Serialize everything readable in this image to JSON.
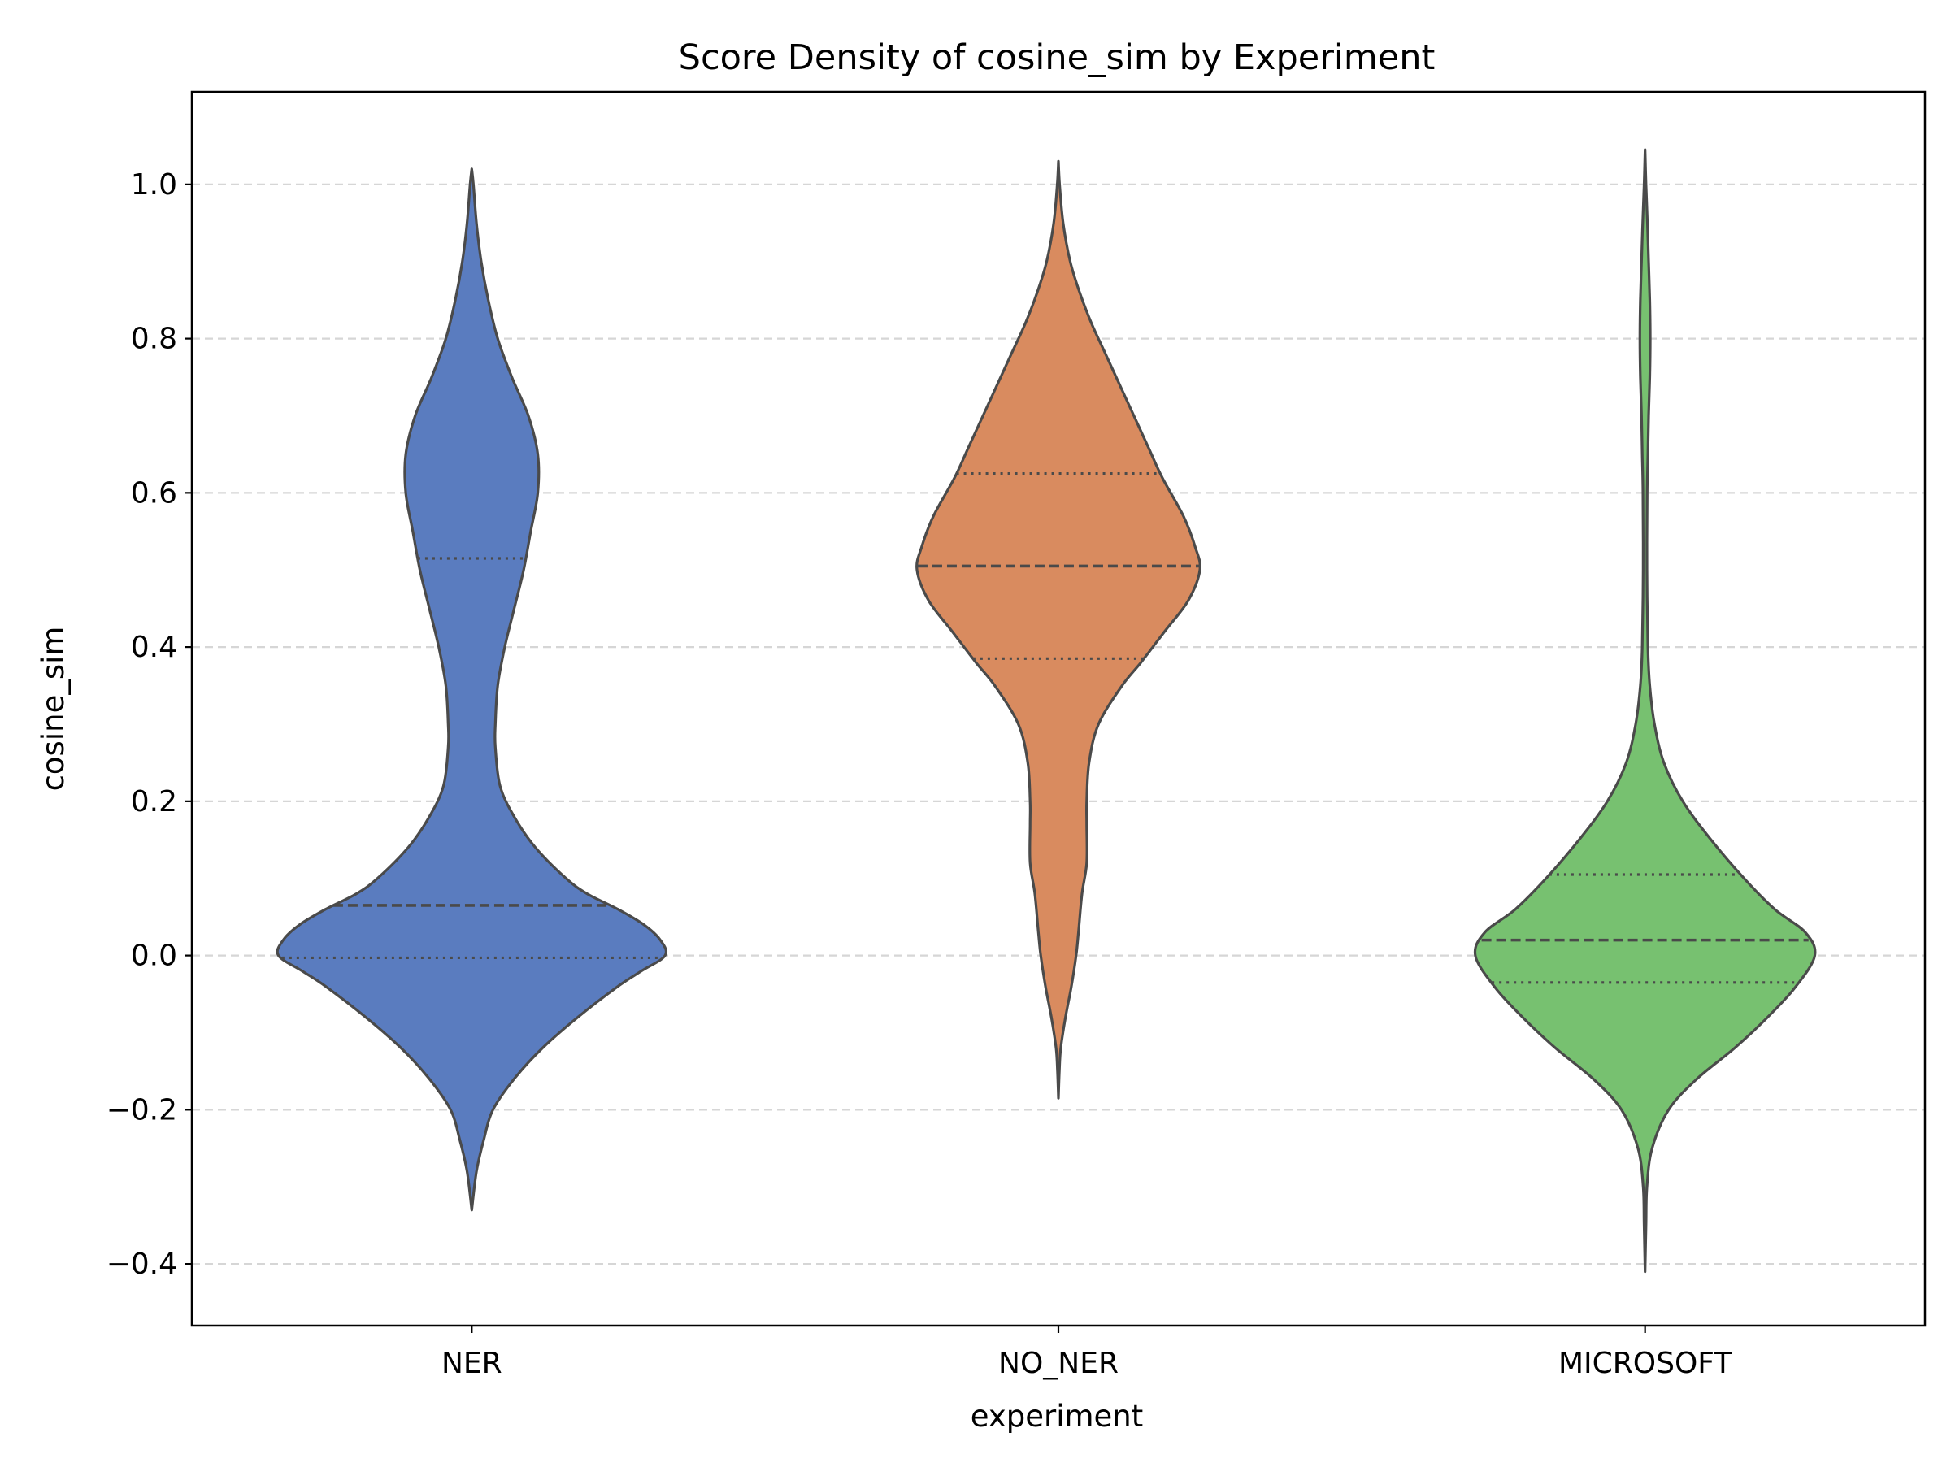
{
  "chart_data": {
    "type": "violin",
    "title": "Score Density of cosine_sim by Experiment",
    "xlabel": "experiment",
    "ylabel": "cosine_sim",
    "ylim": [
      -0.48,
      1.12
    ],
    "yticks": [
      -0.4,
      -0.2,
      0.0,
      0.2,
      0.4,
      0.6,
      0.8,
      1.0
    ],
    "ytick_labels": [
      "−0.4",
      "−0.2",
      "0.0",
      "0.2",
      "0.4",
      "0.6",
      "0.8",
      "1.0"
    ],
    "grid": "horizontal dashed",
    "categories": [
      "NER",
      "NO_NER",
      "MICROSOFT"
    ],
    "violins": [
      {
        "category": "NER",
        "color": "#5a7cbf",
        "min": -0.33,
        "max": 1.02,
        "quartiles": {
          "q1": -0.003,
          "median": 0.065,
          "q3": 0.515
        },
        "profile": [
          [
            -0.33,
            0.0
          ],
          [
            -0.28,
            0.02
          ],
          [
            -0.24,
            0.05
          ],
          [
            -0.2,
            0.09
          ],
          [
            -0.16,
            0.18
          ],
          [
            -0.12,
            0.3
          ],
          [
            -0.08,
            0.45
          ],
          [
            -0.04,
            0.62
          ],
          [
            -0.02,
            0.72
          ],
          [
            0.0,
            0.82
          ],
          [
            0.02,
            0.8
          ],
          [
            0.04,
            0.73
          ],
          [
            0.06,
            0.62
          ],
          [
            0.08,
            0.49
          ],
          [
            0.1,
            0.4
          ],
          [
            0.14,
            0.27
          ],
          [
            0.18,
            0.18
          ],
          [
            0.22,
            0.12
          ],
          [
            0.27,
            0.1
          ],
          [
            0.3,
            0.1
          ],
          [
            0.35,
            0.11
          ],
          [
            0.4,
            0.14
          ],
          [
            0.45,
            0.18
          ],
          [
            0.5,
            0.22
          ],
          [
            0.55,
            0.25
          ],
          [
            0.6,
            0.28
          ],
          [
            0.65,
            0.28
          ],
          [
            0.7,
            0.24
          ],
          [
            0.75,
            0.17
          ],
          [
            0.8,
            0.11
          ],
          [
            0.85,
            0.07
          ],
          [
            0.9,
            0.04
          ],
          [
            0.95,
            0.02
          ],
          [
            1.0,
            0.007
          ],
          [
            1.02,
            0.0
          ]
        ]
      },
      {
        "category": "NO_NER",
        "color": "#d98b5f",
        "min": -0.185,
        "max": 1.03,
        "quartiles": {
          "q1": 0.385,
          "median": 0.505,
          "q3": 0.625
        },
        "profile": [
          [
            -0.185,
            0.0
          ],
          [
            -0.15,
            0.004
          ],
          [
            -0.12,
            0.01
          ],
          [
            -0.08,
            0.03
          ],
          [
            -0.04,
            0.055
          ],
          [
            0.0,
            0.075
          ],
          [
            0.03,
            0.085
          ],
          [
            0.08,
            0.1
          ],
          [
            0.12,
            0.12
          ],
          [
            0.17,
            0.12
          ],
          [
            0.2,
            0.12
          ],
          [
            0.25,
            0.13
          ],
          [
            0.3,
            0.17
          ],
          [
            0.35,
            0.27
          ],
          [
            0.38,
            0.35
          ],
          [
            0.42,
            0.45
          ],
          [
            0.46,
            0.55
          ],
          [
            0.5,
            0.6
          ],
          [
            0.53,
            0.58
          ],
          [
            0.57,
            0.53
          ],
          [
            0.62,
            0.44
          ],
          [
            0.66,
            0.38
          ],
          [
            0.72,
            0.29
          ],
          [
            0.78,
            0.2
          ],
          [
            0.82,
            0.14
          ],
          [
            0.86,
            0.09
          ],
          [
            0.9,
            0.05
          ],
          [
            0.95,
            0.02
          ],
          [
            1.0,
            0.005
          ],
          [
            1.03,
            0.0
          ]
        ]
      },
      {
        "category": "MICROSOFT",
        "color": "#77c170",
        "min": -0.41,
        "max": 1.045,
        "quartiles": {
          "q1": -0.035,
          "median": 0.02,
          "q3": 0.105
        },
        "profile": [
          [
            -0.41,
            0.0
          ],
          [
            -0.35,
            0.004
          ],
          [
            -0.3,
            0.008
          ],
          [
            -0.25,
            0.03
          ],
          [
            -0.2,
            0.1
          ],
          [
            -0.16,
            0.22
          ],
          [
            -0.12,
            0.38
          ],
          [
            -0.08,
            0.52
          ],
          [
            -0.04,
            0.64
          ],
          [
            0.0,
            0.72
          ],
          [
            0.03,
            0.68
          ],
          [
            0.06,
            0.55
          ],
          [
            0.1,
            0.42
          ],
          [
            0.15,
            0.28
          ],
          [
            0.2,
            0.16
          ],
          [
            0.25,
            0.08
          ],
          [
            0.3,
            0.04
          ],
          [
            0.35,
            0.02
          ],
          [
            0.4,
            0.012
          ],
          [
            0.5,
            0.008
          ],
          [
            0.6,
            0.009
          ],
          [
            0.65,
            0.012
          ],
          [
            0.7,
            0.015
          ],
          [
            0.75,
            0.02
          ],
          [
            0.8,
            0.022
          ],
          [
            0.85,
            0.02
          ],
          [
            0.9,
            0.015
          ],
          [
            0.95,
            0.01
          ],
          [
            1.0,
            0.004
          ],
          [
            1.045,
            0.0
          ]
        ]
      }
    ]
  }
}
